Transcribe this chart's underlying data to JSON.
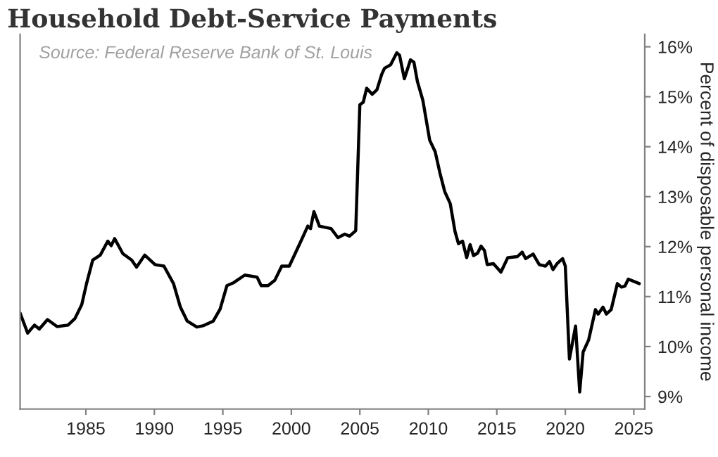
{
  "chart_data": {
    "type": "line",
    "title": "Household Debt-Service Payments",
    "ylabel": "Percent of disposable personal income",
    "annotations": [
      "Source: Federal Reserve Bank of St. Louis"
    ],
    "series": [
      {
        "color": "#000000",
        "x": [
          1980.2,
          1980.75,
          1981.25,
          1981.6,
          1982.2,
          1982.9,
          1983.7,
          1984.2,
          1984.7,
          1985.05,
          1985.5,
          1986.05,
          1986.6,
          1986.85,
          1987.1,
          1987.7,
          1988.35,
          1988.7,
          1989.3,
          1990.05,
          1990.7,
          1991.4,
          1991.9,
          1992.4,
          1993.1,
          1993.6,
          1994.3,
          1994.8,
          1995.3,
          1995.8,
          1996.6,
          1997.5,
          1997.8,
          1998.3,
          1998.8,
          1999.3,
          1999.85,
          2000.7,
          2001.2,
          2001.4,
          2001.65,
          2002.05,
          2002.9,
          2003.4,
          2003.9,
          2004.25,
          2004.7,
          2005.0,
          2005.25,
          2005.5,
          2005.9,
          2006.25,
          2006.6,
          2006.8,
          2007.25,
          2007.7,
          2007.9,
          2008.25,
          2008.7,
          2008.95,
          2009.2,
          2009.6,
          2010.1,
          2010.5,
          2010.85,
          2011.2,
          2011.6,
          2011.95,
          2012.2,
          2012.5,
          2012.8,
          2013.05,
          2013.3,
          2013.6,
          2013.85,
          2014.1,
          2014.3,
          2014.75,
          2015.3,
          2015.8,
          2016.5,
          2016.85,
          2017.1,
          2017.65,
          2018.1,
          2018.55,
          2018.85,
          2019.1,
          2019.4,
          2019.8,
          2020.0,
          2020.3,
          2020.75,
          2021.05,
          2021.3,
          2021.7,
          2022.2,
          2022.4,
          2022.75,
          2023.0,
          2023.35,
          2023.8,
          2024.1,
          2024.35,
          2024.6,
          2025.4
        ],
        "values": [
          10.67,
          10.27,
          10.43,
          10.35,
          10.54,
          10.4,
          10.43,
          10.56,
          10.84,
          11.26,
          11.73,
          11.83,
          12.11,
          12.02,
          12.16,
          11.86,
          11.73,
          11.59,
          11.83,
          11.64,
          11.61,
          11.26,
          10.79,
          10.51,
          10.39,
          10.42,
          10.51,
          10.75,
          11.22,
          11.28,
          11.43,
          11.39,
          11.22,
          11.22,
          11.33,
          11.61,
          11.61,
          12.11,
          12.41,
          12.36,
          12.7,
          12.41,
          12.36,
          12.18,
          12.25,
          12.21,
          12.32,
          14.84,
          14.89,
          15.17,
          15.05,
          15.14,
          15.45,
          15.57,
          15.64,
          15.88,
          15.83,
          15.36,
          15.74,
          15.69,
          15.31,
          14.93,
          14.13,
          13.9,
          13.47,
          13.1,
          12.86,
          12.3,
          12.06,
          12.11,
          11.78,
          12.04,
          11.82,
          11.87,
          12.01,
          11.92,
          11.64,
          11.66,
          11.49,
          11.78,
          11.8,
          11.89,
          11.76,
          11.85,
          11.64,
          11.61,
          11.7,
          11.54,
          11.66,
          11.76,
          11.61,
          9.75,
          10.41,
          9.09,
          9.89,
          10.13,
          10.74,
          10.65,
          10.79,
          10.65,
          10.74,
          11.26,
          11.19,
          11.21,
          11.35,
          11.26
        ]
      }
    ],
    "xlim": [
      1980.2,
      2025.8
    ],
    "xticks": [
      1985,
      1990,
      1995,
      2000,
      2005,
      2010,
      2015,
      2020,
      2025
    ],
    "ylim": [
      8.75,
      16.25
    ],
    "yticks": [
      {
        "value": 9,
        "label": "9%"
      },
      {
        "value": 10,
        "label": "10%"
      },
      {
        "value": 11,
        "label": "11%"
      },
      {
        "value": 12,
        "label": "12%"
      },
      {
        "value": 13,
        "label": "13%"
      },
      {
        "value": 14,
        "label": "14%"
      },
      {
        "value": 15,
        "label": "15%"
      },
      {
        "value": 16,
        "label": "16%"
      }
    ],
    "grid": false,
    "legend": false,
    "marker": "none",
    "line_style": "solid"
  }
}
